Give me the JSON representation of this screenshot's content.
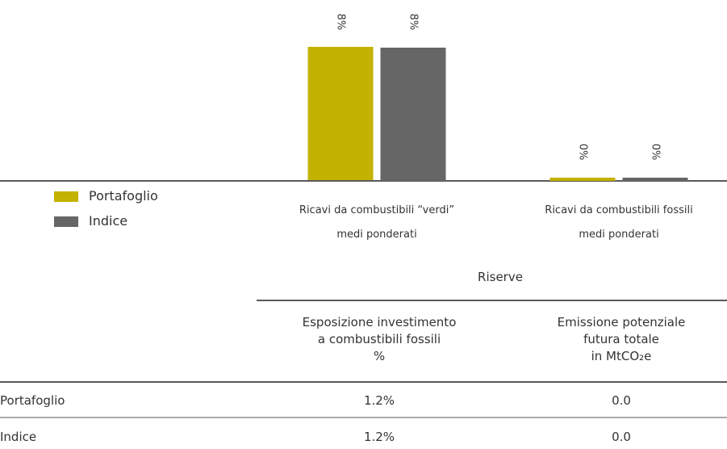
{
  "chart_data": {
    "type": "bar",
    "categories": [
      "Ricavi da combustibili “verdi” medi ponderati",
      "Ricavi da combustibili fossili medi ponderati"
    ],
    "series": [
      {
        "name": "Portafoglio",
        "color": "#c4b200",
        "values": [
          8,
          0
        ],
        "value_labels": [
          "8%",
          "0%"
        ]
      },
      {
        "name": "Indice",
        "color": "#666666",
        "values": [
          8,
          0
        ],
        "value_labels": [
          "8%",
          "0%"
        ]
      }
    ]
  },
  "table": {
    "group": "Riserve",
    "columns": [
      [
        "Esposizione investimento",
        "a combustibili fossili",
        "%"
      ],
      [
        "Emissione potenziale",
        "futura totale",
        "in MtCO₂e"
      ]
    ],
    "rows": [
      [
        "Portafoglio",
        "1.2%",
        "0.0"
      ],
      [
        "Indice",
        "1.2%",
        "0.0"
      ]
    ]
  }
}
